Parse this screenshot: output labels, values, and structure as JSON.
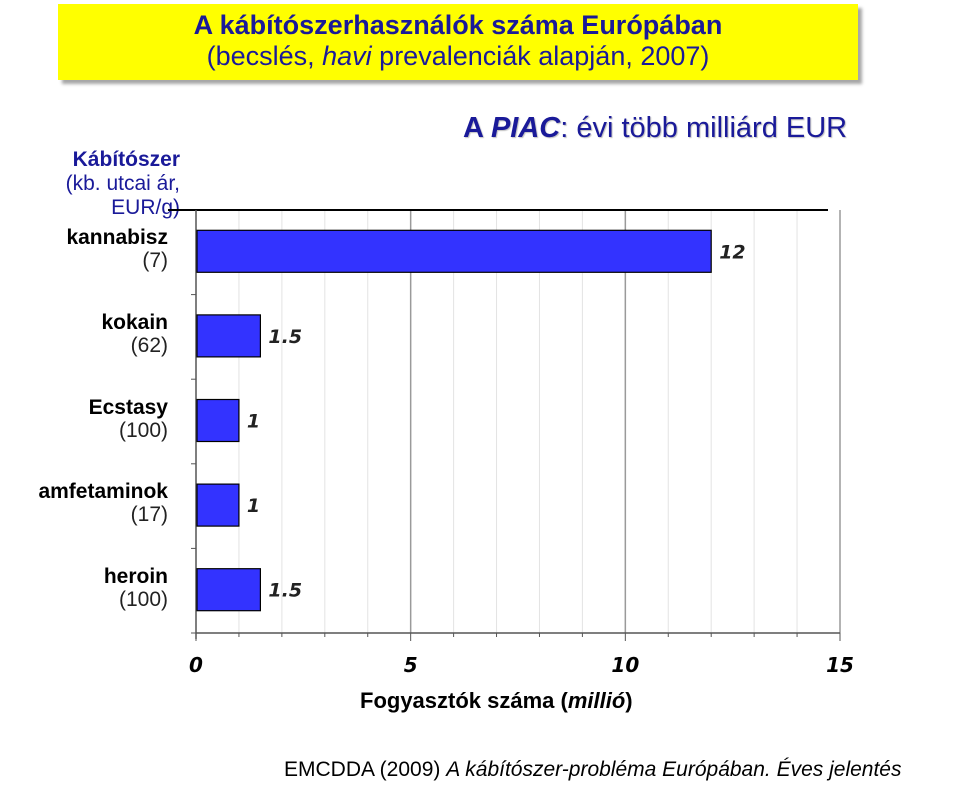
{
  "title": {
    "line1": "A kábítószerhasználók száma Európában",
    "line2_pre": "(becslés, ",
    "line2_italic": "havi",
    "line2_post": " prevalenciák alapján, 2007)"
  },
  "piac": {
    "prefix": "A ",
    "word": "PIAC",
    "suffix": ":  évi több milliárd EUR"
  },
  "legend_header": {
    "line1": "Kábítószer",
    "line2": "(kb. utcai ár, EUR/g)"
  },
  "chart_data": {
    "type": "bar",
    "orientation": "horizontal",
    "categories": [
      "kannabisz",
      "kokain",
      "Ecstasy",
      "amfetaminok",
      "heroin"
    ],
    "category_prices": [
      "(7)",
      "(62)",
      "(100)",
      "(17)",
      "(100)"
    ],
    "values": [
      12,
      1.5,
      1,
      1,
      1.5
    ],
    "value_labels": [
      "12",
      "1.5",
      "1",
      "1",
      "1.5"
    ],
    "xlim": [
      0,
      15
    ],
    "xticks": [
      "0",
      "5",
      "10",
      "15"
    ],
    "xlabel_pre": "Fogyasztók száma (",
    "xlabel_italic": "millió",
    "xlabel_post": ")",
    "bar_color": "#3333ff",
    "grid": true
  },
  "source": {
    "pre": "EMCDDA (2009) ",
    "italic": "A kábítószer-probléma Európában. Éves jelentés"
  }
}
